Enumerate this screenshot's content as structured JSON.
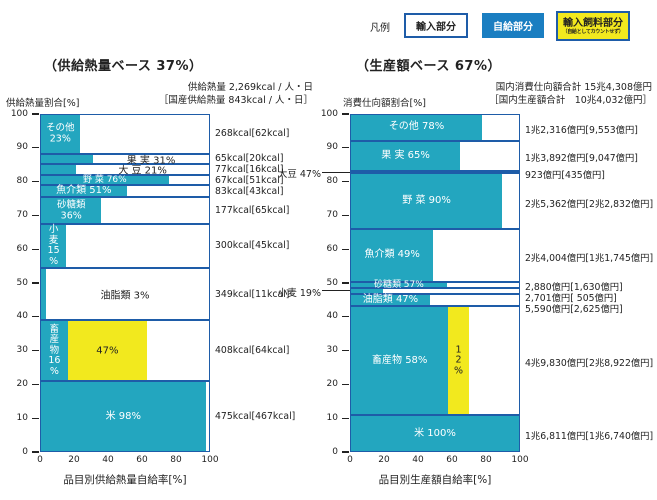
{
  "colors": {
    "self_fill": "#23A6BF",
    "import_fill": "#FFFFFF",
    "feed_fill": "#F2E91E",
    "legend_self_fill": "#1A7EC1",
    "border": "#1E5CA8",
    "text": "#222222"
  },
  "legend": {
    "title": "凡例",
    "items": [
      {
        "key": "import",
        "label": "輸入部分"
      },
      {
        "key": "self",
        "label": "自給部分"
      },
      {
        "key": "feed",
        "label": "輸入飼料部分",
        "sublabel": "（自給としてカウントせず）"
      }
    ]
  },
  "chart_data": [
    {
      "type": "bar",
      "variant": "horizontal-stacked-mosaic",
      "title": "（供給熱量ベース 37%）",
      "header_line1": "供給熱量 2,269kcal / 人・日",
      "header_line2": "［国産供給熱量 843kcal / 人・日］",
      "ylabel": "供給熱量割合[%]",
      "xlabel": "品目別供給熱量自給率[%]",
      "xlim": [
        0,
        100
      ],
      "ylim": [
        0,
        100
      ],
      "x_ticks": [
        "0",
        "20",
        "40",
        "60",
        "80",
        "100"
      ],
      "y_ticks": [
        "100",
        "90",
        "80",
        "70",
        "60",
        "50",
        "40",
        "30",
        "20",
        "10",
        "0"
      ],
      "rows": [
        {
          "category": "その他",
          "rate_pct": 23,
          "share_pct": 11.81,
          "label": "その他 23%",
          "label_lines": [
            "その他",
            "23%"
          ],
          "label_style": "stack-teal",
          "annotation": "268kcal[62kcal]"
        },
        {
          "category": "果実",
          "rate_pct": 31,
          "share_pct": 2.87,
          "label": "果 実 31%",
          "label_style": "white-area",
          "annotation": "65kcal[20kcal]"
        },
        {
          "category": "大豆",
          "rate_pct": 21,
          "share_pct": 3.39,
          "label": "大 豆 21%",
          "label_style": "white-area",
          "annotation": "77kcal[16kcal]"
        },
        {
          "category": "野菜",
          "rate_pct": 76,
          "share_pct": 2.95,
          "label": "野 菜 76%",
          "label_style": "teal-center",
          "annotation": "67kcal[51kcal]"
        },
        {
          "category": "魚介類",
          "rate_pct": 51,
          "share_pct": 3.66,
          "label": "魚介類 51%",
          "label_style": "teal-center",
          "annotation": "83kcal[43kcal]"
        },
        {
          "category": "砂糖類",
          "rate_pct": 36,
          "share_pct": 7.8,
          "label": "砂糖類 36%",
          "label_lines": [
            "砂糖類",
            "36%"
          ],
          "label_style": "stack-teal",
          "annotation": "177kcal[65kcal]"
        },
        {
          "category": "小麦",
          "rate_pct": 15,
          "share_pct": 13.22,
          "label": "小麦 15%",
          "label_lines": [
            "小",
            "麦",
            "15",
            "%"
          ],
          "label_style": "vertical-teal",
          "annotation": "300kcal[45kcal]"
        },
        {
          "category": "油脂類",
          "rate_pct": 3,
          "share_pct": 15.38,
          "label": "油脂類 3%",
          "label_style": "row-center",
          "annotation": "349kcal[11kcal]"
        },
        {
          "category": "畜産物",
          "rate_pct": 16,
          "feed_pct": 47,
          "share_pct": 17.98,
          "label": "畜産物 16%",
          "label_lines": [
            "畜",
            "産",
            "物",
            "16",
            "%"
          ],
          "label_style": "vertical-teal",
          "feed_label": "47%",
          "feed_label_style": "center",
          "annotation": "408kcal[64kcal]"
        },
        {
          "category": "米",
          "rate_pct": 98,
          "share_pct": 20.93,
          "label": "米 98%",
          "label_style": "teal-center",
          "annotation": "475kcal[467kcal]"
        }
      ]
    },
    {
      "type": "bar",
      "variant": "horizontal-stacked-mosaic",
      "title": "（生産額ベース 67%）",
      "header_line1": "国内消費仕向額合計 15兆4,308億円",
      "header_line2": "［国内生産額合計　10兆4,032億円］",
      "ylabel": "消費仕向額割合[%]",
      "xlabel": "品目別生産額自給率[%]",
      "xlim": [
        0,
        100
      ],
      "ylim": [
        0,
        100
      ],
      "x_ticks": [
        "0",
        "20",
        "40",
        "60",
        "80",
        "100"
      ],
      "y_ticks": [
        "100",
        "90",
        "80",
        "70",
        "60",
        "50",
        "40",
        "30",
        "20",
        "10",
        "0"
      ],
      "rows": [
        {
          "category": "その他",
          "rate_pct": 78,
          "share_pct": 7.98,
          "label": "その他 78%",
          "label_style": "teal-center",
          "annotation": "1兆2,316億円[9,553億円]"
        },
        {
          "category": "果実",
          "rate_pct": 65,
          "share_pct": 9.0,
          "label": "果 実 65%",
          "label_style": "teal-center",
          "annotation": "1兆3,892億円[9,047億円]"
        },
        {
          "category": "大豆",
          "rate_pct": 47,
          "share_pct": 0.6,
          "label": "大豆 47%",
          "label_style": "external",
          "annotation": "923億円[435億円]"
        },
        {
          "category": "野菜",
          "rate_pct": 90,
          "share_pct": 16.44,
          "label": "野 菜 90%",
          "label_style": "teal-center",
          "annotation": "2兆5,362億円[2兆2,832億円]"
        },
        {
          "category": "魚介類",
          "rate_pct": 49,
          "share_pct": 15.56,
          "label": "魚介類 49%",
          "label_style": "teal-center",
          "annotation": "2兆4,004億円[1兆1,745億円]"
        },
        {
          "category": "砂糖類",
          "rate_pct": 57,
          "share_pct": 1.87,
          "label": "砂糖類 57%",
          "label_style": "teal-center",
          "annotation": "2,880億円[1,630億円]"
        },
        {
          "category": "小麦",
          "rate_pct": 19,
          "share_pct": 1.75,
          "label": "小麦 19%",
          "label_style": "external",
          "annotation": "2,701億円[ 505億円]"
        },
        {
          "category": "油脂類",
          "rate_pct": 47,
          "share_pct": 3.62,
          "label": "油脂類 47%",
          "label_style": "teal-center",
          "annotation": "5,590億円[2,625億円]"
        },
        {
          "category": "畜産物",
          "rate_pct": 58,
          "feed_pct": 12,
          "share_pct": 32.29,
          "label": "畜産物 58%",
          "label_style": "teal-center",
          "feed_label": "12%",
          "feed_label_lines": [
            "1",
            "2",
            "%"
          ],
          "feed_label_style": "vertical",
          "annotation": "4兆9,830億円[2兆8,922億円]"
        },
        {
          "category": "米",
          "rate_pct": 100,
          "share_pct": 10.89,
          "label": "米 100%",
          "label_style": "teal-center",
          "annotation": "1兆6,811億円[1兆6,740億円]"
        }
      ]
    }
  ]
}
